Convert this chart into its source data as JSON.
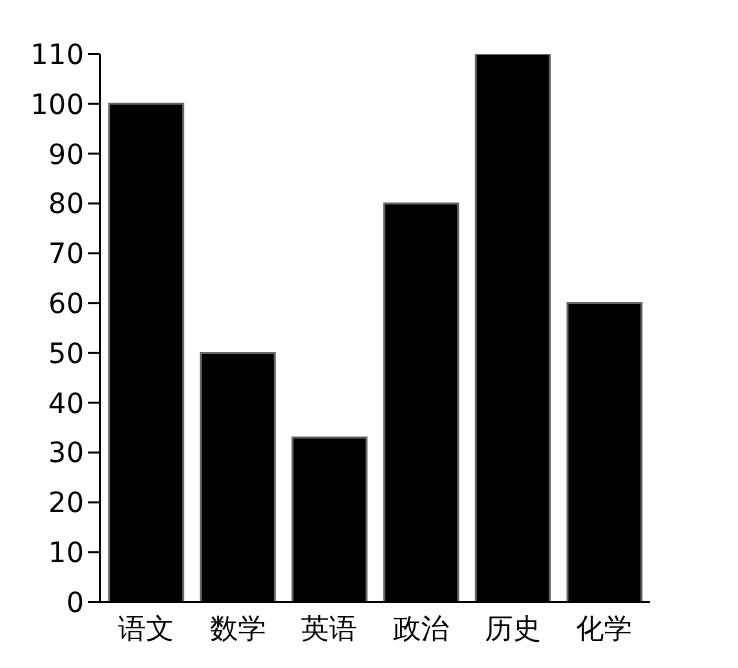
{
  "chart_data": {
    "type": "bar",
    "categories": [
      "语文",
      "数学",
      "英语",
      "政治",
      "历史",
      "化学"
    ],
    "values": [
      100,
      50,
      33,
      80,
      110,
      60
    ],
    "color": "#000000",
    "ylim": [
      0,
      110
    ],
    "yticks": [
      0,
      10,
      20,
      30,
      40,
      50,
      60,
      70,
      80,
      90,
      100,
      110
    ],
    "grid": false,
    "legend": false
  }
}
